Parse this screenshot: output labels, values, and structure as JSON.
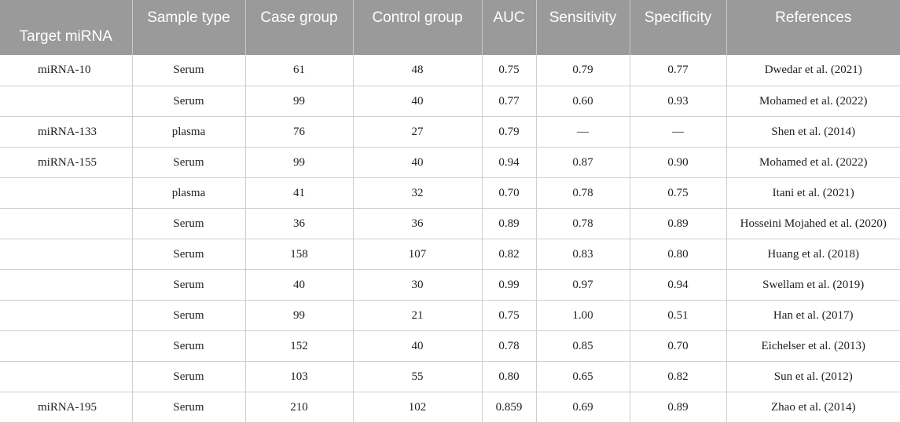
{
  "table": {
    "headers": [
      "Target miRNA",
      "Sample type",
      "Case group",
      "Control group",
      "AUC",
      "Sensitivity",
      "Specificity",
      "References"
    ],
    "rows": [
      [
        "miRNA-10",
        "Serum",
        "61",
        "48",
        "0.75",
        "0.79",
        "0.77",
        "Dwedar et al. (2021)"
      ],
      [
        "",
        "Serum",
        "99",
        "40",
        "0.77",
        "0.60",
        "0.93",
        "Mohamed et al. (2022)"
      ],
      [
        "miRNA-133",
        "plasma",
        "76",
        "27",
        "0.79",
        "—",
        "—",
        "Shen et al. (2014)"
      ],
      [
        "miRNA-155",
        "Serum",
        "99",
        "40",
        "0.94",
        "0.87",
        "0.90",
        "Mohamed et al. (2022)"
      ],
      [
        "",
        "plasma",
        "41",
        "32",
        "0.70",
        "0.78",
        "0.75",
        "Itani et al. (2021)"
      ],
      [
        "",
        "Serum",
        "36",
        "36",
        "0.89",
        "0.78",
        "0.89",
        "Hosseini Mojahed et al. (2020)"
      ],
      [
        "",
        "Serum",
        "158",
        "107",
        "0.82",
        "0.83",
        "0.80",
        "Huang et al. (2018)"
      ],
      [
        "",
        "Serum",
        "40",
        "30",
        "0.99",
        "0.97",
        "0.94",
        "Swellam et al. (2019)"
      ],
      [
        "",
        "Serum",
        "99",
        "21",
        "0.75",
        "1.00",
        "0.51",
        "Han et al. (2017)"
      ],
      [
        "",
        "Serum",
        "152",
        "40",
        "0.78",
        "0.85",
        "0.70",
        "Eichelser et al. (2013)"
      ],
      [
        "",
        "Serum",
        "103",
        "55",
        "0.80",
        "0.65",
        "0.82",
        "Sun et al. (2012)"
      ],
      [
        "miRNA-195",
        "Serum",
        "210",
        "102",
        "0.859",
        "0.69",
        "0.89",
        "Zhao et al. (2014)"
      ]
    ]
  }
}
